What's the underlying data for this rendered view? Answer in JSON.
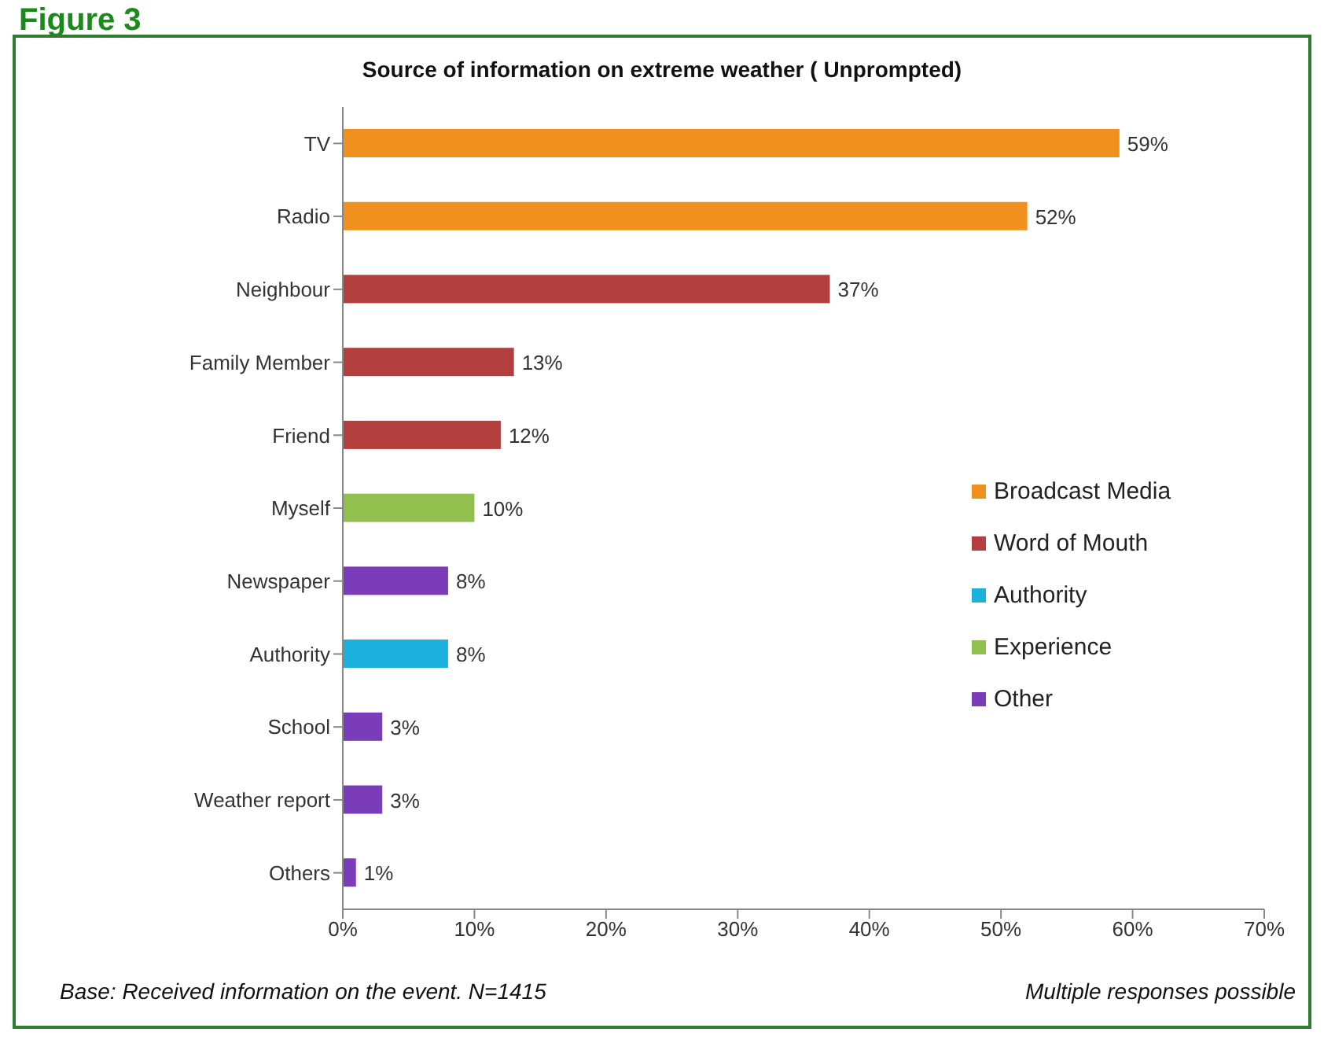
{
  "chart_data": {
    "type": "bar",
    "orientation": "horizontal",
    "title": "Source of information on extreme weather ( Unprompted)",
    "categories": [
      "TV",
      "Radio",
      "Neighbour",
      "Family Member",
      "Friend",
      "Myself",
      "Newspaper",
      "Authority",
      "School",
      "Weather report",
      "Others"
    ],
    "series": [
      {
        "name": "Broadcast Media",
        "color": "#f0901e",
        "values": [
          59,
          52,
          null,
          null,
          null,
          null,
          null,
          null,
          null,
          null,
          null
        ],
        "value_labels": [
          "59%",
          "52%",
          null,
          null,
          null,
          null,
          null,
          null,
          null,
          null,
          null
        ]
      },
      {
        "name": "Word of Mouth",
        "color": "#b3403e",
        "values": [
          null,
          null,
          37,
          13,
          12,
          null,
          null,
          null,
          null,
          null,
          null
        ],
        "value_labels": [
          null,
          null,
          "37%",
          "13%",
          "12%",
          null,
          null,
          null,
          null,
          null,
          null
        ]
      },
      {
        "name": "Authority",
        "color": "#1eb0dc",
        "values": [
          null,
          null,
          null,
          null,
          null,
          null,
          null,
          8,
          null,
          null,
          null
        ],
        "value_labels": [
          null,
          null,
          null,
          null,
          null,
          null,
          null,
          "8%",
          null,
          null,
          null
        ]
      },
      {
        "name": "Experience",
        "color": "#92c04e",
        "values": [
          null,
          null,
          null,
          null,
          null,
          10,
          null,
          null,
          null,
          null,
          null
        ],
        "value_labels": [
          null,
          null,
          null,
          null,
          null,
          "10%",
          null,
          null,
          null,
          null,
          null
        ]
      },
      {
        "name": "Other",
        "color": "#7a3cb8",
        "values": [
          null,
          null,
          null,
          null,
          null,
          null,
          8,
          null,
          3,
          3,
          1
        ],
        "value_labels": [
          null,
          null,
          null,
          null,
          null,
          null,
          "8%",
          null,
          "3%",
          "3%",
          "1%"
        ]
      }
    ],
    "xlim": [
      0,
      70
    ],
    "xticks": [
      {
        "value": 0,
        "label": "0%"
      },
      {
        "value": 10,
        "label": "10%"
      },
      {
        "value": 20,
        "label": "20%"
      },
      {
        "value": 30,
        "label": "30%"
      },
      {
        "value": 40,
        "label": "40%"
      },
      {
        "value": 50,
        "label": "50%"
      },
      {
        "value": 60,
        "label": "60%"
      },
      {
        "value": 70,
        "label": "70%"
      }
    ],
    "legend": "right",
    "annotations": [
      "Figure 3",
      "Base:  Received information on the event. N=1415",
      "Multiple responses possible"
    ]
  }
}
